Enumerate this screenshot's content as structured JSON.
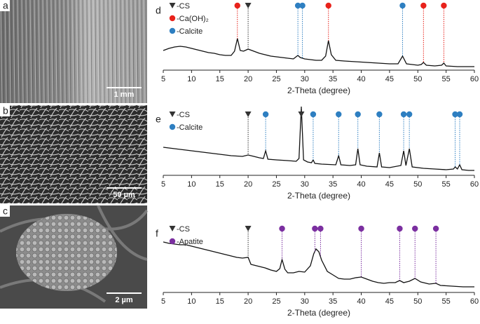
{
  "panels": [
    {
      "label": "a",
      "scale_bar": "1 mm"
    },
    {
      "label": "b",
      "scale_bar": "50 µm"
    },
    {
      "label": "c",
      "scale_bar": "2 µm"
    }
  ],
  "chart_data": [
    {
      "type": "line",
      "label": "d",
      "xlabel": "2-Theta (degree)",
      "color": "#111111",
      "xlim": [
        5,
        60
      ],
      "xticks": [
        5,
        10,
        15,
        20,
        25,
        30,
        35,
        40,
        45,
        50,
        55,
        60
      ],
      "ylim": [
        0,
        100
      ],
      "x": [
        5,
        6,
        7,
        8,
        9,
        10,
        11,
        12,
        13,
        14,
        15,
        16,
        17,
        17.6,
        18.1,
        18.6,
        19.2,
        20,
        21,
        22,
        23,
        24,
        25,
        26,
        27,
        28,
        28.8,
        29.2,
        29.6,
        30,
        31,
        32,
        33,
        33.7,
        34.2,
        34.7,
        35.5,
        37,
        39,
        41,
        43,
        45,
        46.5,
        47.3,
        48,
        49,
        50,
        50.6,
        51,
        51.5,
        53,
        54.2,
        54.6,
        55,
        57,
        58,
        60
      ],
      "values": [
        28,
        31,
        33,
        34,
        33,
        31,
        29,
        27,
        25,
        24,
        22,
        21,
        21,
        27,
        45,
        28,
        27,
        30,
        27,
        24,
        22,
        20,
        19,
        18,
        17,
        16,
        21,
        18,
        17,
        16,
        15,
        14,
        14,
        20,
        42,
        22,
        14,
        13,
        12,
        11,
        10,
        9,
        9,
        20,
        9,
        8,
        7,
        8,
        11,
        7,
        6,
        7,
        10,
        6,
        5,
        5,
        5
      ],
      "markers": [
        {
          "name": "-CS",
          "shape": "triangle",
          "color": "#333333",
          "x": [
            20
          ]
        },
        {
          "name": "-Ca(OH)₂",
          "shape": "circle",
          "color": "#e8221b",
          "x": [
            18.1,
            34.2,
            51,
            54.6
          ]
        },
        {
          "name": "-Calcite",
          "shape": "circle",
          "color": "#2e7fc1",
          "x": [
            28.8,
            29.6,
            47.3
          ]
        }
      ]
    },
    {
      "type": "line",
      "label": "e",
      "xlabel": "2-Theta (degree)",
      "color": "#111111",
      "xlim": [
        5,
        60
      ],
      "xticks": [
        5,
        10,
        15,
        20,
        25,
        30,
        35,
        40,
        45,
        50,
        55,
        60
      ],
      "ylim": [
        0,
        100
      ],
      "x": [
        5,
        7,
        9,
        11,
        13,
        15,
        17,
        19,
        20,
        21,
        22,
        22.7,
        23.1,
        23.5,
        25,
        27,
        28.5,
        29,
        29.4,
        29.8,
        30.5,
        31.2,
        31.5,
        31.8,
        33,
        35.5,
        36,
        36.4,
        38,
        39,
        39.4,
        39.8,
        41,
        42.8,
        43.2,
        43.6,
        45,
        47,
        47.5,
        47.9,
        48.5,
        49,
        51,
        53,
        55,
        56.3,
        56.6,
        57,
        57.4,
        57.8,
        59,
        60
      ],
      "values": [
        40,
        38,
        36,
        34,
        32,
        30,
        28,
        27,
        29,
        27,
        25,
        24,
        35,
        23,
        22,
        21,
        20,
        24,
        98,
        22,
        19,
        18,
        22,
        17,
        16,
        15,
        28,
        15,
        14,
        15,
        38,
        15,
        13,
        12,
        32,
        12,
        11,
        14,
        35,
        14,
        38,
        12,
        10,
        9,
        8,
        9,
        12,
        9,
        15,
        8,
        7,
        7
      ],
      "markers": [
        {
          "name": "-CS",
          "shape": "triangle",
          "color": "#333333",
          "x": [
            20,
            29.4
          ]
        },
        {
          "name": "-Calcite",
          "shape": "circle",
          "color": "#2e7fc1",
          "x": [
            23.1,
            31.5,
            36,
            39.4,
            43.2,
            47.5,
            48.5,
            56.6,
            57.4
          ]
        }
      ]
    },
    {
      "type": "line",
      "label": "f",
      "xlabel": "2-Theta (degree)",
      "color": "#111111",
      "xlim": [
        5,
        60
      ],
      "xticks": [
        5,
        10,
        15,
        20,
        25,
        30,
        35,
        40,
        45,
        50,
        55,
        60
      ],
      "ylim": [
        0,
        100
      ],
      "x": [
        5,
        6,
        7,
        8,
        9,
        10,
        11,
        12,
        13,
        14,
        15,
        16,
        17,
        18,
        19,
        20,
        20.5,
        21,
        22,
        23,
        24,
        25,
        25.6,
        26,
        26.5,
        27,
        28,
        29,
        30,
        31,
        31.6,
        32,
        32.5,
        33,
        34,
        35,
        36,
        37,
        38,
        39,
        40,
        41,
        42,
        43,
        44,
        45,
        46,
        46.8,
        47.5,
        48.5,
        49.5,
        50.5,
        52,
        53.2,
        54,
        56,
        58,
        60
      ],
      "values": [
        72,
        70,
        69,
        68,
        68,
        66,
        64,
        62,
        60,
        58,
        56,
        54,
        52,
        50,
        49,
        50,
        40,
        39,
        37,
        35,
        32,
        30,
        34,
        47,
        33,
        28,
        28,
        30,
        29,
        38,
        55,
        62,
        58,
        46,
        30,
        25,
        20,
        19,
        19,
        21,
        22,
        19,
        16,
        14,
        13,
        14,
        14,
        17,
        14,
        16,
        20,
        15,
        12,
        13,
        10,
        9,
        8,
        8
      ],
      "markers": [
        {
          "name": "-CS",
          "shape": "triangle",
          "color": "#333333",
          "x": [
            20
          ]
        },
        {
          "name": "-Apatite",
          "shape": "circle",
          "color": "#7b2fa0",
          "x": [
            26,
            31.8,
            32.8,
            40,
            46.8,
            49.5,
            53.2
          ]
        }
      ]
    }
  ]
}
